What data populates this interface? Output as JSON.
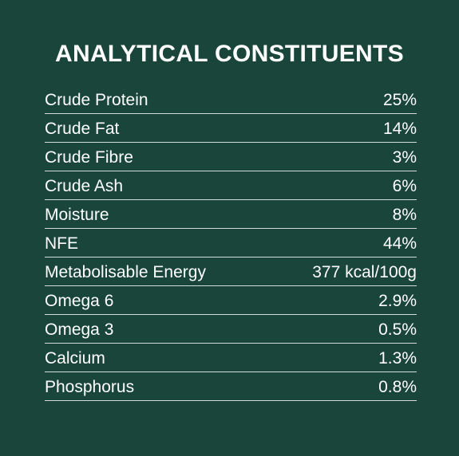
{
  "title": "ANALYTICAL CONSTITUENTS",
  "rows": [
    {
      "label": "Crude Protein",
      "value": "25%"
    },
    {
      "label": "Crude Fat",
      "value": "14%"
    },
    {
      "label": "Crude Fibre",
      "value": "3%"
    },
    {
      "label": "Crude Ash",
      "value": "6%"
    },
    {
      "label": "Moisture",
      "value": "8%"
    },
    {
      "label": "NFE",
      "value": "44%"
    },
    {
      "label": "Metabolisable Energy",
      "value": "377 kcal/100g"
    },
    {
      "label": "Omega 6",
      "value": "2.9%"
    },
    {
      "label": "Omega 3",
      "value": "0.5%"
    },
    {
      "label": "Calcium",
      "value": "1.3%"
    },
    {
      "label": "Phosphorus",
      "value": "0.8%"
    }
  ],
  "colors": {
    "background": "#19453b",
    "text": "#ffffff"
  }
}
